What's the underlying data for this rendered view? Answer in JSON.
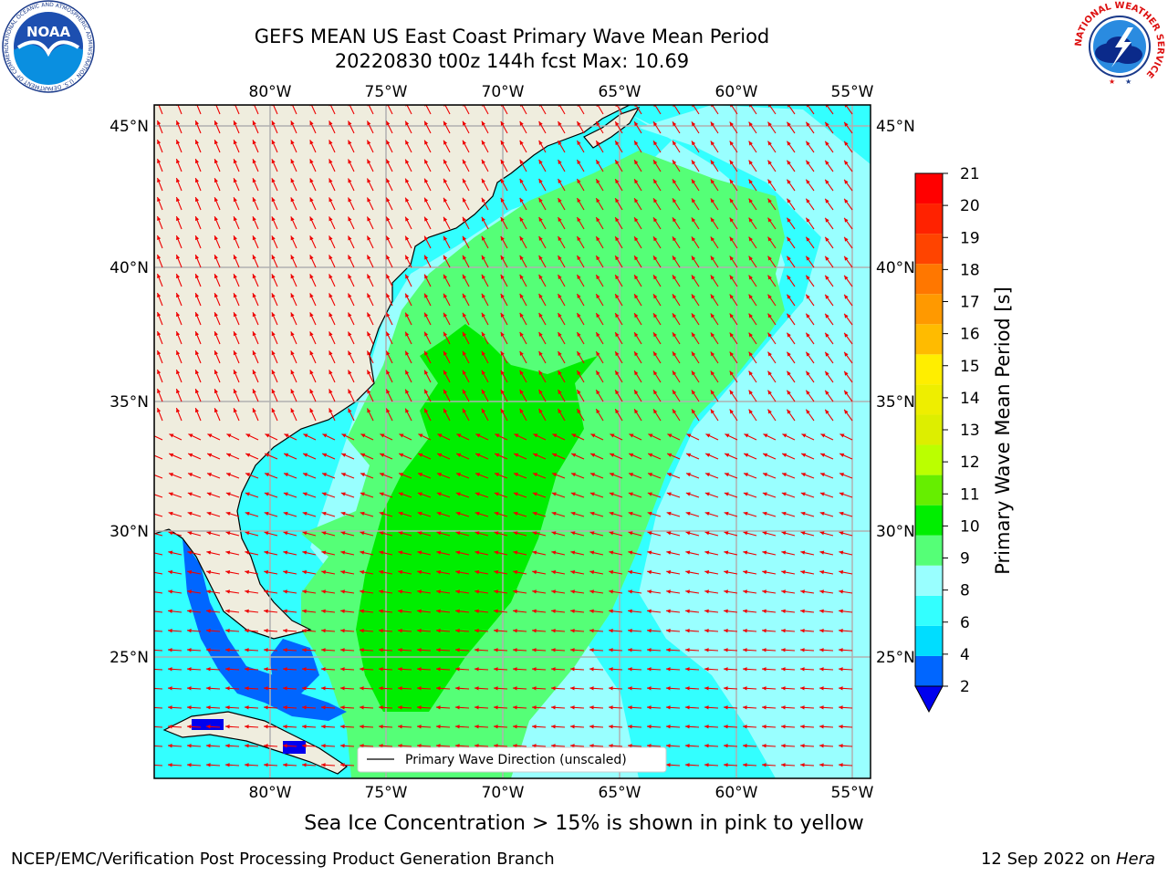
{
  "title_line1": "GEFS MEAN US East Coast Primary Wave Mean Period",
  "title_line2": "20220830 t00z 144h fcst   Max: 10.69",
  "lon_labels": [
    "80°W",
    "75°W",
    "70°W",
    "65°W",
    "60°W",
    "55°W"
  ],
  "lat_labels": [
    "45°N",
    "40°N",
    "35°N",
    "30°N",
    "25°N"
  ],
  "legend_label": "Primary Wave Direction (unscaled)",
  "colorbar": {
    "label": "Primary Wave Mean Period [s]",
    "ticks": [
      "2",
      "4",
      "6",
      "8",
      "9",
      "10",
      "11",
      "12",
      "13",
      "14",
      "15",
      "16",
      "17",
      "18",
      "19",
      "20",
      "21"
    ],
    "colors": [
      "#0066ff",
      "#00ddff",
      "#33ffff",
      "#99ffff",
      "#55ff77",
      "#00ee00",
      "#66ee00",
      "#bbff00",
      "#ddee00",
      "#eeee00",
      "#ffee00",
      "#ffbb00",
      "#ff9900",
      "#ff7700",
      "#ff4400",
      "#ff2200",
      "#ff0000"
    ],
    "extend_color": "#0000ee"
  },
  "sea_ice_note": "Sea Ice Concentration > 15% is shown in pink to yellow",
  "footer_left": "NCEP/EMC/Verification Post Processing Product Generation Branch",
  "footer_date": "12 Sep 2022 on",
  "footer_machine": "Hera",
  "noaa_logo_text": "NOAA",
  "noaa_ring_text": "NATIONAL OCEANIC AND ATMOSPHERIC ADMINISTRATION · U.S. DEPARTMENT OF COMMERCE",
  "nws_ring_text": "NATIONAL WEATHER SERVICE",
  "colors": {
    "land": "#efedde",
    "arrow": "#ee0000",
    "grid": "#b0b0b0"
  }
}
